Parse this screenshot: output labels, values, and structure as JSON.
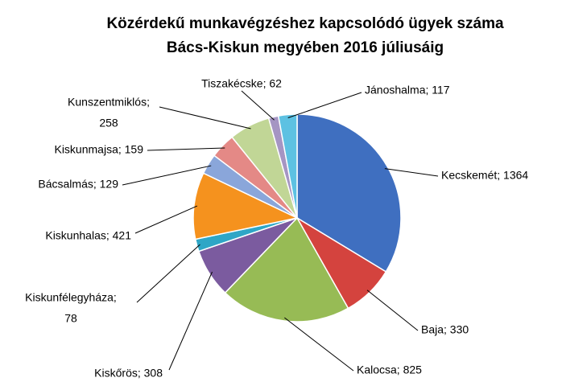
{
  "chart_data": {
    "type": "pie",
    "title": [
      "Közérdekű munkavégzéshez kapcsolódó ügyek száma",
      "Bács-Kiskun megyében 2016 júliusáig"
    ],
    "values": [
      1364,
      330,
      825,
      308,
      78,
      421,
      129,
      159,
      258,
      62,
      117
    ],
    "value_labels": [
      [
        "Kecskemét; 1364"
      ],
      [
        "Baja; 330"
      ],
      [
        "Kalocsa; 825"
      ],
      [
        "Kiskőrös; 308"
      ],
      [
        "Kiskunfélegyháza;",
        "78"
      ],
      [
        "Kiskunhalas; 421"
      ],
      [
        "Bácsalmás; 129"
      ],
      [
        "Kiskunmajsa; 159"
      ],
      [
        "Kunszentmiklós;",
        "258"
      ],
      [
        "Tiszakécske; 62"
      ],
      [
        "Jánoshalma; 117"
      ]
    ],
    "colors": [
      "#3f6fc0",
      "#d4433e",
      "#97bb55",
      "#7b5b9f",
      "#2ea6c6",
      "#f5921e",
      "#8aa6da",
      "#e48986",
      "#c1d696",
      "#a595c3",
      "#5dc1e2"
    ]
  }
}
